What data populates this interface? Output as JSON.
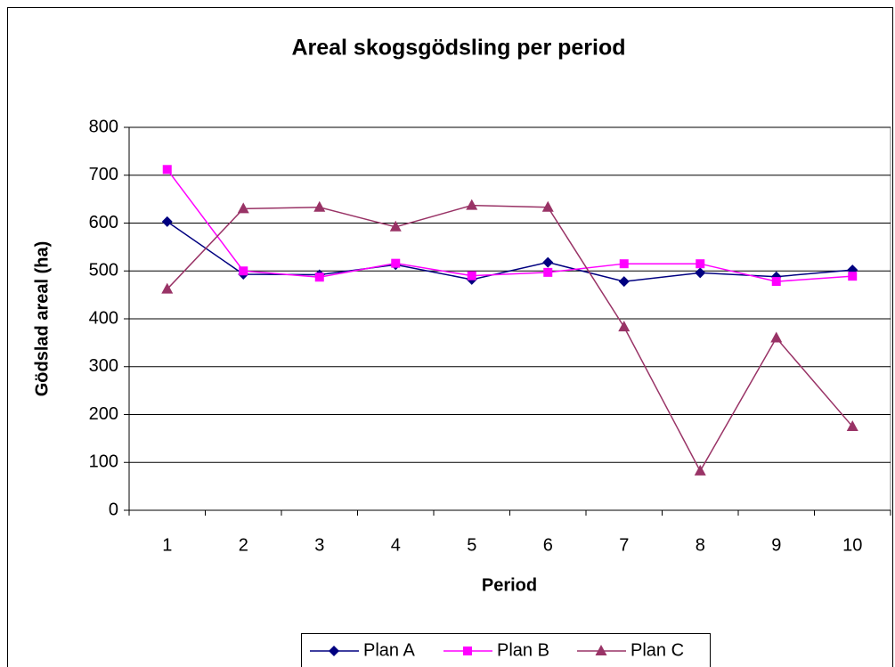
{
  "chart_data": {
    "type": "line",
    "title": "Areal skogsgödsling per period",
    "x_label": "Period",
    "y_label": "Gödslad areal (ha)",
    "categories": [
      "1",
      "2",
      "3",
      "4",
      "5",
      "6",
      "7",
      "8",
      "9",
      "10"
    ],
    "series": [
      {
        "name": "Plan A",
        "color": "#000080",
        "marker": "diamond",
        "values": [
          603,
          493,
          492,
          513,
          482,
          518,
          478,
          496,
          488,
          502
        ]
      },
      {
        "name": "Plan B",
        "color": "#ff00ff",
        "marker": "square",
        "values": [
          712,
          500,
          487,
          516,
          490,
          497,
          515,
          515,
          478,
          489
        ]
      },
      {
        "name": "Plan C",
        "color": "#993366",
        "marker": "triangle",
        "values": [
          462,
          630,
          633,
          592,
          637,
          633,
          383,
          82,
          360,
          175
        ]
      }
    ],
    "ylim": [
      0,
      800
    ],
    "yticks": [
      0,
      100,
      200,
      300,
      400,
      500,
      600,
      700,
      800
    ],
    "grid": true,
    "legend": "bottom"
  }
}
